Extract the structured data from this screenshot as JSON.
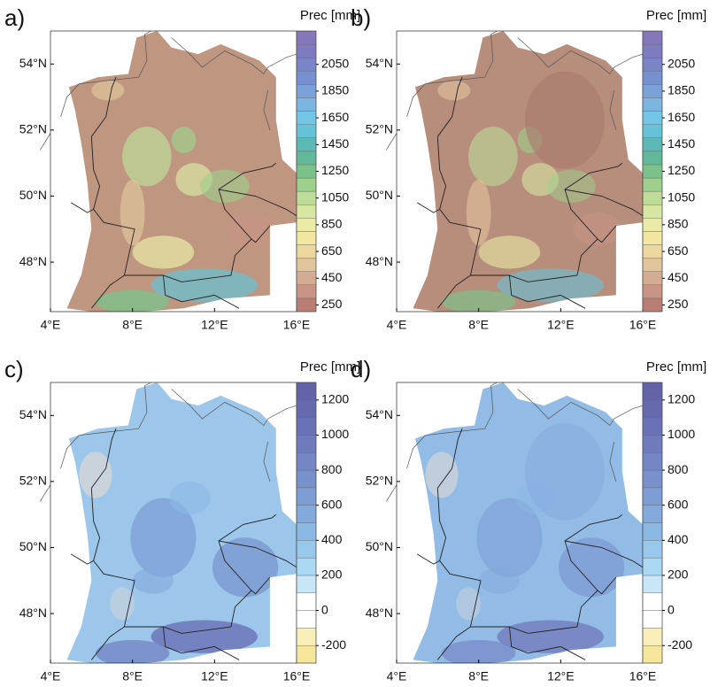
{
  "panels": [
    {
      "label": "a)",
      "xlim": [
        4,
        16
      ],
      "ylim": [
        46.5,
        55
      ],
      "xticks": [
        {
          "value": 4,
          "label": "4°E"
        },
        {
          "value": 8,
          "label": "8°E"
        },
        {
          "value": 12,
          "label": "12°E"
        },
        {
          "value": 16,
          "label": "16°E"
        }
      ],
      "yticks": [
        {
          "value": 48,
          "label": "48°N"
        },
        {
          "value": 50,
          "label": "50°N"
        },
        {
          "value": 52,
          "label": "52°N"
        },
        {
          "value": 54,
          "label": "54°N"
        }
      ],
      "colorbar": {
        "title": "Prec [mm]",
        "lim": [
          200,
          2300
        ],
        "ticks": [
          250,
          450,
          650,
          850,
          1050,
          1250,
          1450,
          1650,
          1850,
          2050
        ],
        "colors": [
          "#b97d73",
          "#c89486",
          "#d4ab93",
          "#e0c49c",
          "#ecd89e",
          "#f2e6a0",
          "#e9eba6",
          "#d8e6a4",
          "#bedc98",
          "#9fcf8c",
          "#7dc18a",
          "#63b89a",
          "#5cb9b5",
          "#66c2d6",
          "#74c6e6",
          "#7cb6e0",
          "#7aa2d8",
          "#7790cf",
          "#7a84c8",
          "#7e7bc0",
          "#8677bb"
        ]
      }
    },
    {
      "label": "b)",
      "xlim": [
        4,
        16
      ],
      "ylim": [
        46.5,
        55
      ],
      "xticks": [
        {
          "value": 4,
          "label": "4°E"
        },
        {
          "value": 8,
          "label": "8°E"
        },
        {
          "value": 12,
          "label": "12°E"
        },
        {
          "value": 16,
          "label": "16°E"
        }
      ],
      "yticks": [
        {
          "value": 48,
          "label": "48°N"
        },
        {
          "value": 50,
          "label": "50°N"
        },
        {
          "value": 52,
          "label": "52°N"
        },
        {
          "value": 54,
          "label": "54°N"
        }
      ],
      "colorbar": {
        "title": "Prec [mm]",
        "lim": [
          200,
          2300
        ],
        "ticks": [
          250,
          450,
          650,
          850,
          1050,
          1250,
          1450,
          1650,
          1850,
          2050
        ],
        "colors": [
          "#b97d73",
          "#c89486",
          "#d4ab93",
          "#e0c49c",
          "#ecd89e",
          "#f2e6a0",
          "#e9eba6",
          "#d8e6a4",
          "#bedc98",
          "#9fcf8c",
          "#7dc18a",
          "#63b89a",
          "#5cb9b5",
          "#66c2d6",
          "#74c6e6",
          "#7cb6e0",
          "#7aa2d8",
          "#7790cf",
          "#7a84c8",
          "#7e7bc0",
          "#8677bb"
        ]
      }
    },
    {
      "label": "c)",
      "xlim": [
        4,
        16
      ],
      "ylim": [
        46.5,
        55
      ],
      "xticks": [
        {
          "value": 4,
          "label": "4°E"
        },
        {
          "value": 8,
          "label": "8°E"
        },
        {
          "value": 12,
          "label": "12°E"
        },
        {
          "value": 16,
          "label": "16°E"
        }
      ],
      "yticks": [
        {
          "value": 48,
          "label": "48°N"
        },
        {
          "value": 50,
          "label": "50°N"
        },
        {
          "value": 52,
          "label": "52°N"
        },
        {
          "value": 54,
          "label": "54°N"
        }
      ],
      "colorbar": {
        "title": "Prec [mm]",
        "lim": [
          -300,
          1300
        ],
        "ticks": [
          -200,
          0,
          200,
          400,
          600,
          800,
          1000,
          1200
        ],
        "colors": [
          "#f6e79c",
          "#f8eeb8",
          "#ffffff",
          "#ffffff",
          "#c7e6f7",
          "#aad8f2",
          "#98c8ec",
          "#8cb9e4",
          "#84aadc",
          "#7d9dd4",
          "#7891cc",
          "#7486c5",
          "#6f7bbd",
          "#6b71b6",
          "#6769af",
          "#6462a8"
        ]
      }
    },
    {
      "label": "d)",
      "xlim": [
        4,
        16
      ],
      "ylim": [
        46.5,
        55
      ],
      "xticks": [
        {
          "value": 4,
          "label": "4°E"
        },
        {
          "value": 8,
          "label": "8°E"
        },
        {
          "value": 12,
          "label": "12°E"
        },
        {
          "value": 16,
          "label": "16°E"
        }
      ],
      "yticks": [
        {
          "value": 48,
          "label": "48°N"
        },
        {
          "value": 50,
          "label": "50°N"
        },
        {
          "value": 52,
          "label": "52°N"
        },
        {
          "value": 54,
          "label": "54°N"
        }
      ],
      "colorbar": {
        "title": "Prec [mm]",
        "lim": [
          -300,
          1300
        ],
        "ticks": [
          -200,
          0,
          200,
          400,
          600,
          800,
          1000,
          1200
        ],
        "colors": [
          "#f6e79c",
          "#f8eeb8",
          "#ffffff",
          "#ffffff",
          "#c7e6f7",
          "#aad8f2",
          "#98c8ec",
          "#8cb9e4",
          "#84aadc",
          "#7d9dd4",
          "#7891cc",
          "#7486c5",
          "#6f7bbd",
          "#6b71b6",
          "#6769af",
          "#6462a8"
        ]
      }
    }
  ]
}
